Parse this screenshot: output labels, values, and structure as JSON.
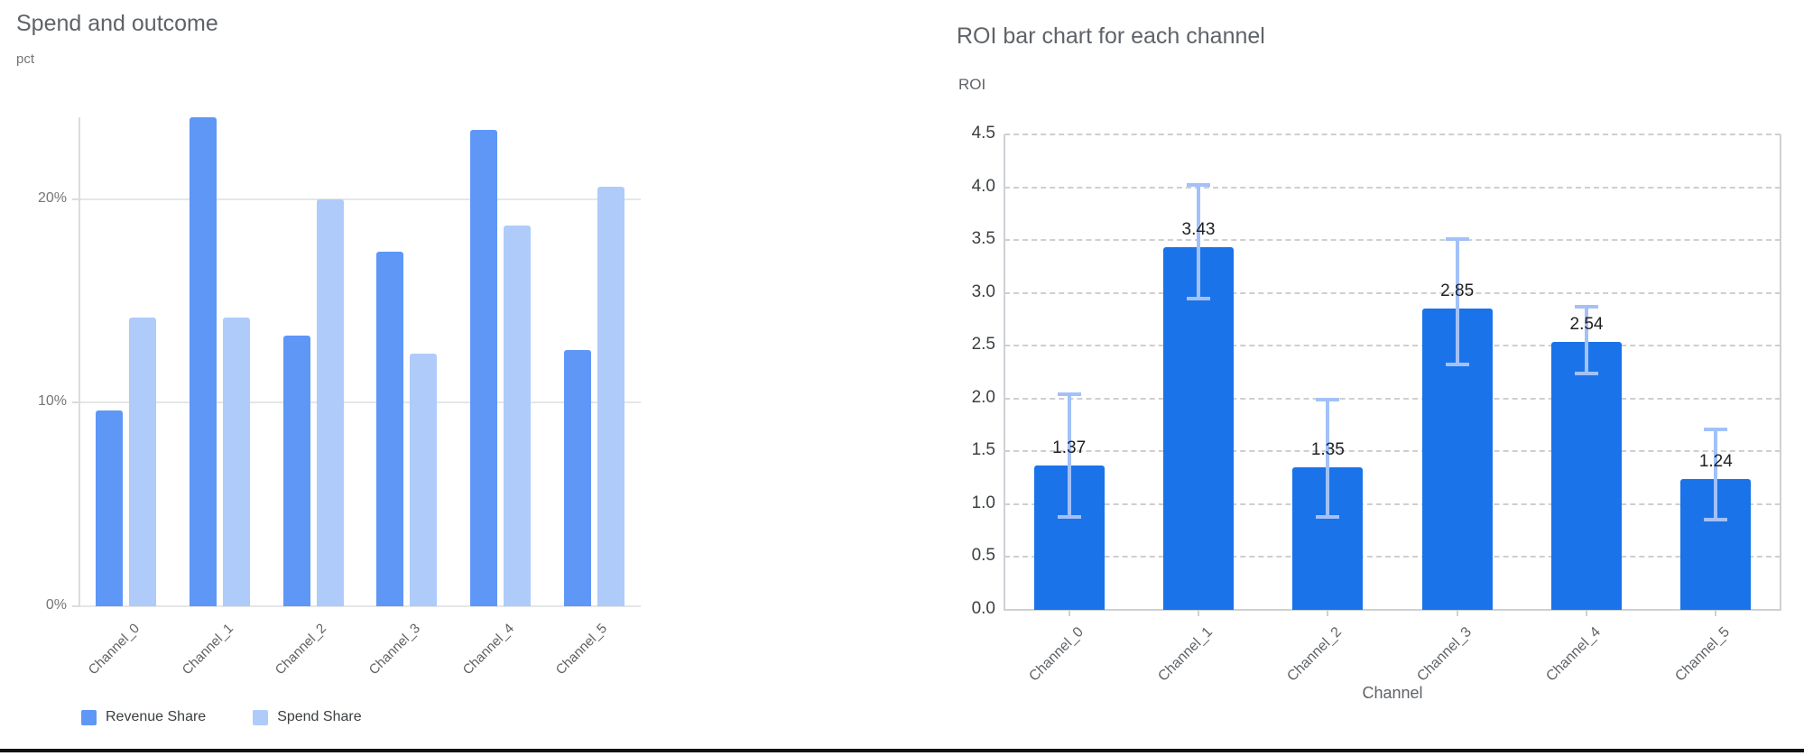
{
  "page": {
    "background_color": "#ffffff",
    "bottom_rule_color": "#111111"
  },
  "chart_data": [
    {
      "type": "bar",
      "title": "Spend and outcome",
      "ylabel": "pct",
      "xlabel": "",
      "categories": [
        "Channel_0",
        "Channel_1",
        "Channel_2",
        "Channel_3",
        "Channel_4",
        "Channel_5"
      ],
      "series": [
        {
          "name": "Revenue Share",
          "color": "#5e97f6",
          "values": [
            9.6,
            24.0,
            13.3,
            17.4,
            23.4,
            12.6
          ]
        },
        {
          "name": "Spend Share",
          "color": "#aecbfa",
          "values": [
            14.2,
            14.2,
            20.0,
            12.4,
            18.7,
            20.6
          ]
        }
      ],
      "y_ticks": [
        {
          "value": 0,
          "label": "0%"
        },
        {
          "value": 10,
          "label": "10%"
        },
        {
          "value": 20,
          "label": "20%"
        }
      ],
      "ylim": [
        0,
        24.9
      ],
      "grid": true,
      "grid_style": "solid",
      "legend_position": "bottom"
    },
    {
      "type": "bar",
      "title": "ROI bar chart for each channel",
      "ylabel": "ROI",
      "xlabel": "Channel",
      "categories": [
        "Channel_0",
        "Channel_1",
        "Channel_2",
        "Channel_3",
        "Channel_4",
        "Channel_5"
      ],
      "values": [
        1.37,
        3.43,
        1.35,
        2.85,
        2.54,
        1.24
      ],
      "bar_labels": [
        "1.37",
        "3.43",
        "1.35",
        "2.85",
        "2.54",
        "1.24"
      ],
      "error_bars": [
        {
          "low": 0.88,
          "high": 2.04
        },
        {
          "low": 2.95,
          "high": 4.02
        },
        {
          "low": 0.88,
          "high": 1.99
        },
        {
          "low": 2.32,
          "high": 3.51
        },
        {
          "low": 2.24,
          "high": 2.87
        },
        {
          "low": 0.85,
          "high": 1.71
        }
      ],
      "y_ticks": [
        {
          "value": 0.0,
          "label": "0.0"
        },
        {
          "value": 0.5,
          "label": "0.5"
        },
        {
          "value": 1.0,
          "label": "1.0"
        },
        {
          "value": 1.5,
          "label": "1.5"
        },
        {
          "value": 2.0,
          "label": "2.0"
        },
        {
          "value": 2.5,
          "label": "2.5"
        },
        {
          "value": 3.0,
          "label": "3.0"
        },
        {
          "value": 3.5,
          "label": "3.5"
        },
        {
          "value": 4.0,
          "label": "4.0"
        },
        {
          "value": 4.5,
          "label": "4.5"
        }
      ],
      "ylim": [
        0,
        4.5
      ],
      "grid": true,
      "grid_style": "dashed",
      "bar_color": "#1a73e8",
      "error_bar_color": "#a3c1f8",
      "legend_position": "none"
    }
  ]
}
